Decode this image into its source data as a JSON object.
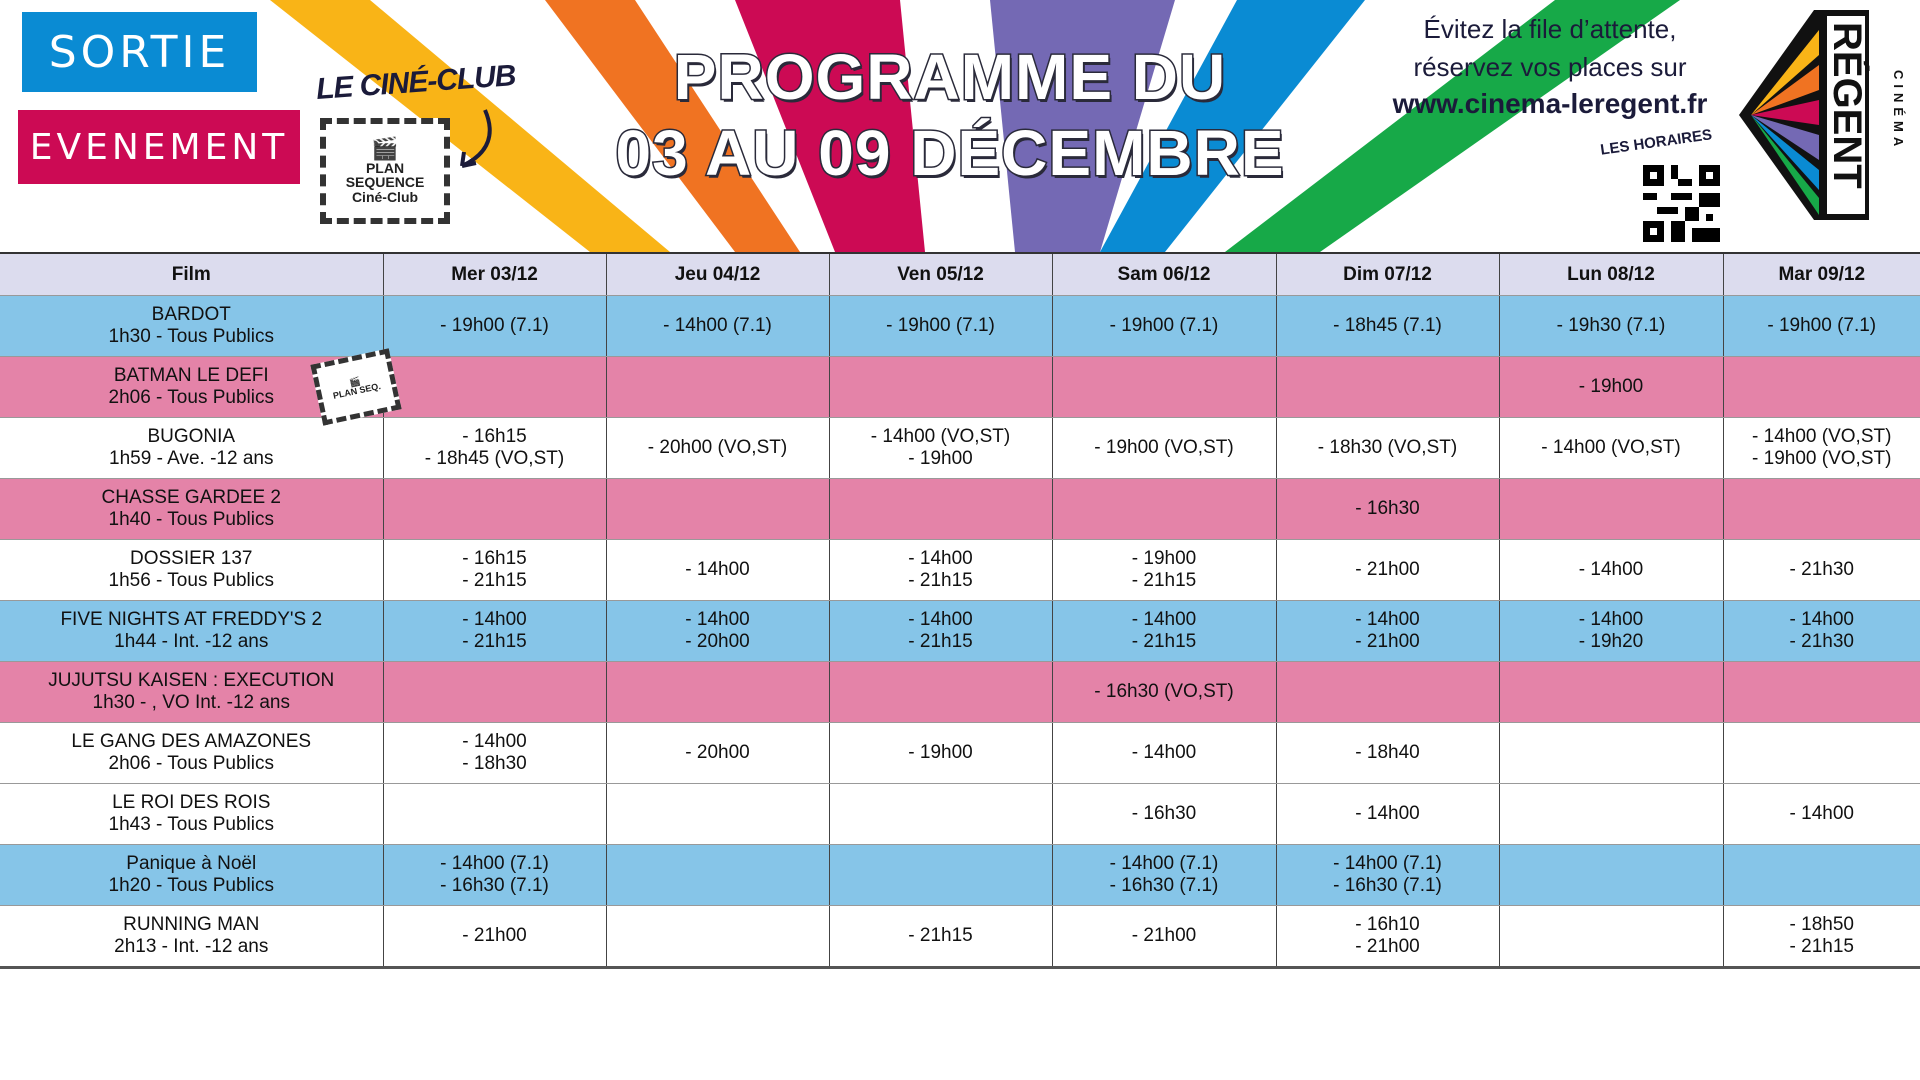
{
  "banner": {
    "sortie_label": "SORTIE",
    "evenement_label": "EVENEMENT",
    "cine_club_label": "LE CINÉ-CLUB",
    "cine_club_logo_text": "PLAN SEQUENCE Ciné-Club",
    "title_line1": "PROGRAMME DU",
    "title_line2": "03 AU 09 DÉCEMBRE",
    "booking_line1": "Évitez la file d’attente,",
    "booking_line2": "réservez vos places sur",
    "booking_url": "www.cinema-leregent.fr",
    "qr_label": "LES HORAIRES",
    "logo_text": "RÉGENT",
    "logo_subtext": "CINÉMA",
    "ray_colors": [
      "#f9b417",
      "#f07322",
      "#cc0a54",
      "#7469b4",
      "#0a8bd3",
      "#17a948"
    ]
  },
  "colors": {
    "row_blue": "#86c5e8",
    "row_pink": "#e483a8",
    "header": "#dcdcee",
    "sortie": "#0a8bd3",
    "evenement": "#cc0a54"
  },
  "table": {
    "headers": [
      "Film",
      "Mer 03/12",
      "Jeu 04/12",
      "Ven 05/12",
      "Sam 06/12",
      "Dim 07/12",
      "Lun 08/12",
      "Mar 09/12"
    ],
    "rows": [
      {
        "title": "BARDOT",
        "info": "1h30 -  Tous Publics",
        "style": "blue",
        "days": [
          [
            "- 19h00 (7.1)"
          ],
          [
            "- 14h00 (7.1)"
          ],
          [
            "- 19h00 (7.1)"
          ],
          [
            "- 19h00 (7.1)"
          ],
          [
            "- 18h45 (7.1)"
          ],
          [
            "- 19h30 (7.1)"
          ],
          [
            "- 19h00 (7.1)"
          ]
        ]
      },
      {
        "title": "BATMAN LE DEFI",
        "info": "2h06 -  Tous Publics",
        "style": "pink",
        "cine_club": true,
        "days": [
          [],
          [],
          [],
          [],
          [],
          [
            "- 19h00"
          ],
          []
        ]
      },
      {
        "title": "BUGONIA",
        "info": "1h59 -  Ave. -12 ans",
        "style": "white",
        "days": [
          [
            "- 16h15",
            "- 18h45 (VO,ST)"
          ],
          [
            "- 20h00 (VO,ST)"
          ],
          [
            "- 14h00 (VO,ST)",
            "- 19h00"
          ],
          [
            "- 19h00 (VO,ST)"
          ],
          [
            "- 18h30 (VO,ST)"
          ],
          [
            "- 14h00 (VO,ST)"
          ],
          [
            "- 14h00 (VO,ST)",
            "- 19h00 (VO,ST)"
          ]
        ]
      },
      {
        "title": "CHASSE GARDEE 2",
        "info": "1h40 -  Tous Publics",
        "style": "pink",
        "days": [
          [],
          [],
          [],
          [],
          [
            "- 16h30"
          ],
          [],
          []
        ]
      },
      {
        "title": "DOSSIER 137",
        "info": "1h56 -  Tous Publics",
        "style": "white",
        "days": [
          [
            "- 16h15",
            "- 21h15"
          ],
          [
            "- 14h00"
          ],
          [
            "- 14h00",
            "- 21h15"
          ],
          [
            "- 19h00",
            "- 21h15"
          ],
          [
            "- 21h00"
          ],
          [
            "- 14h00"
          ],
          [
            "- 21h30"
          ]
        ]
      },
      {
        "title": "FIVE NIGHTS AT FREDDY'S 2",
        "info": "1h44 -  Int. -12 ans",
        "style": "blue",
        "days": [
          [
            "- 14h00",
            "- 21h15"
          ],
          [
            "- 14h00",
            "- 20h00"
          ],
          [
            "- 14h00",
            "- 21h15"
          ],
          [
            "- 14h00",
            "- 21h15"
          ],
          [
            "- 14h00",
            "- 21h00"
          ],
          [
            "- 14h00",
            "- 19h20"
          ],
          [
            "- 14h00",
            "- 21h30"
          ]
        ]
      },
      {
        "title": "JUJUTSU KAISEN : EXECUTION",
        "info": "1h30 - , VO Int. -12 ans",
        "style": "pink",
        "days": [
          [],
          [],
          [],
          [
            "- 16h30 (VO,ST)"
          ],
          [],
          [],
          []
        ]
      },
      {
        "title": "LE GANG DES AMAZONES",
        "info": "2h06 -  Tous Publics",
        "style": "white",
        "days": [
          [
            "- 14h00",
            "- 18h30"
          ],
          [
            "- 20h00"
          ],
          [
            "- 19h00"
          ],
          [
            "- 14h00"
          ],
          [
            "- 18h40"
          ],
          [],
          []
        ]
      },
      {
        "title": "LE ROI DES ROIS",
        "info": "1h43 -  Tous Publics",
        "style": "white",
        "days": [
          [],
          [],
          [],
          [
            "- 16h30"
          ],
          [
            "- 14h00"
          ],
          [],
          [
            "- 14h00"
          ]
        ]
      },
      {
        "title": "Panique à Noël",
        "info": "1h20 -  Tous Publics",
        "style": "blue",
        "days": [
          [
            "- 14h00 (7.1)",
            "- 16h30 (7.1)"
          ],
          [],
          [],
          [
            "- 14h00 (7.1)",
            "- 16h30 (7.1)"
          ],
          [
            "- 14h00 (7.1)",
            "- 16h30 (7.1)"
          ],
          [],
          []
        ]
      },
      {
        "title": "RUNNING MAN",
        "info": "2h13 -  Int. -12 ans",
        "style": "white",
        "days": [
          [
            "- 21h00"
          ],
          [],
          [
            "- 21h15"
          ],
          [
            "- 21h00"
          ],
          [
            "- 16h10",
            "- 21h00"
          ],
          [],
          [
            "- 18h50",
            "- 21h15"
          ]
        ]
      }
    ]
  }
}
